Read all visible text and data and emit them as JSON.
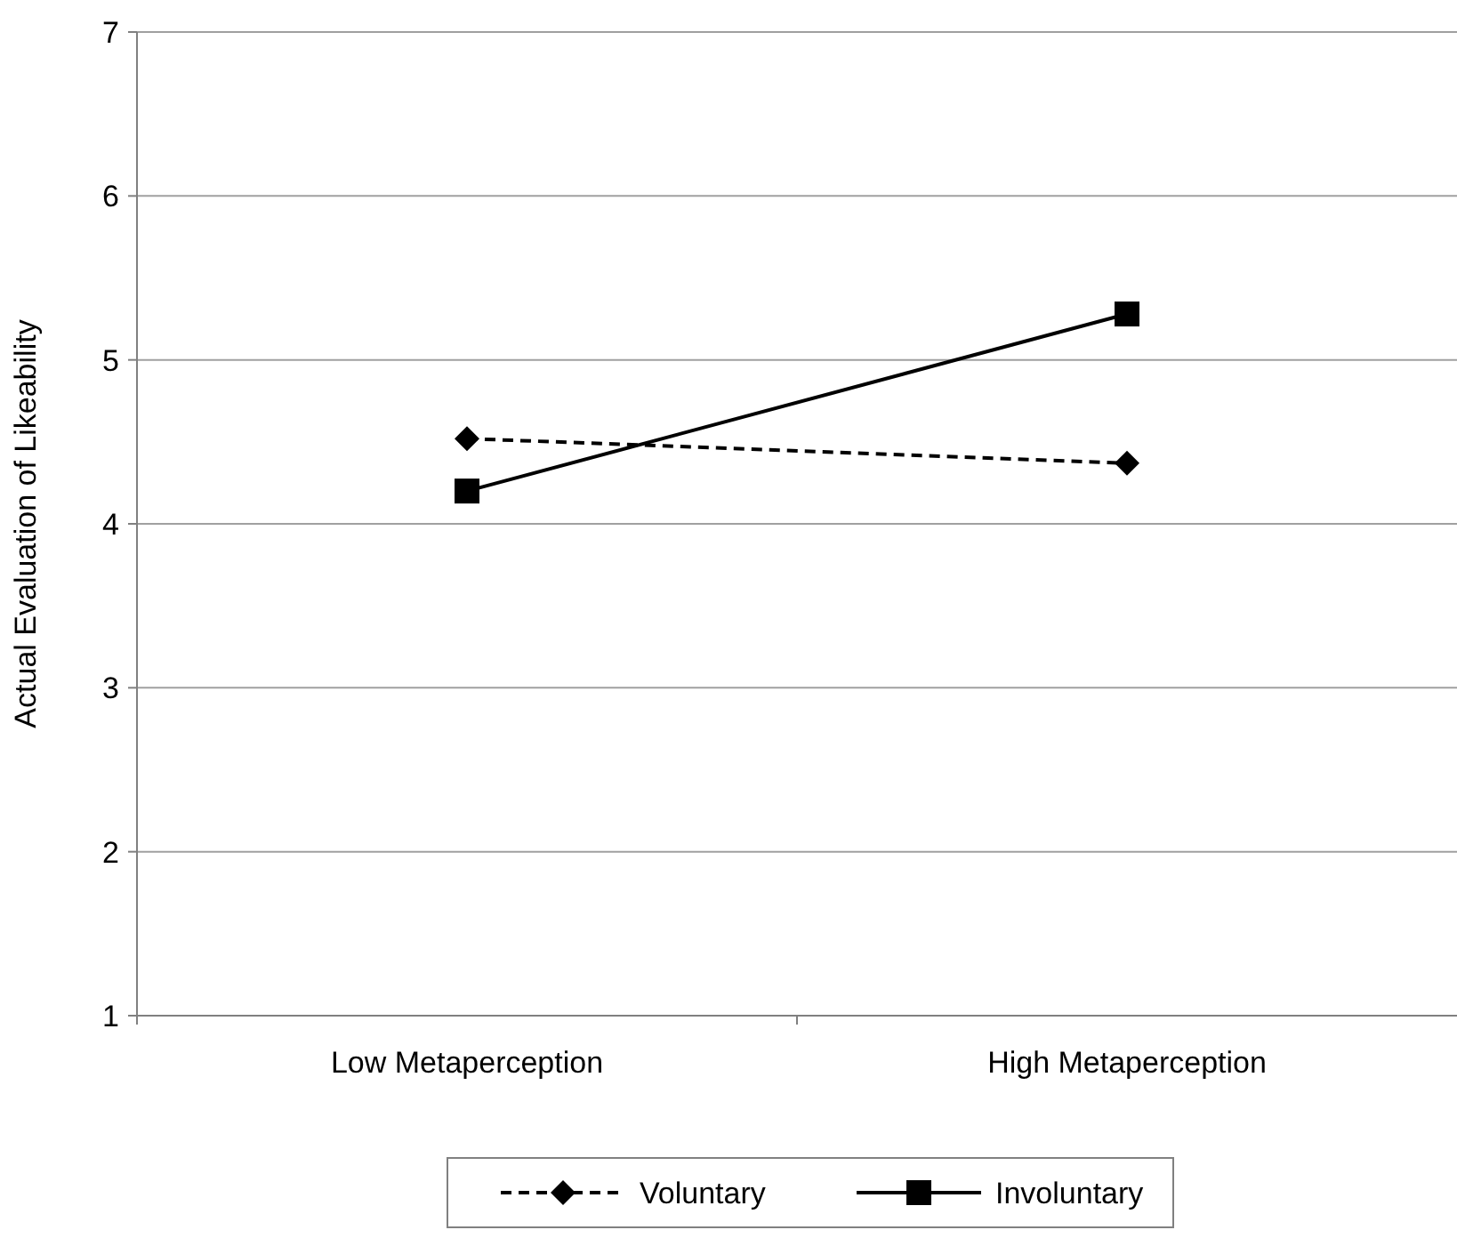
{
  "chart_data": {
    "type": "line",
    "ylabel": "Actual Evaluation of Likeability",
    "categories": [
      "Low Metaperception",
      "High Metaperception"
    ],
    "series": [
      {
        "name": "Voluntary",
        "color": "#000000",
        "values": [
          4.52,
          4.37
        ],
        "marker": "diamond",
        "line_style": "dashed"
      },
      {
        "name": "Involuntary",
        "color": "#000000",
        "values": [
          4.2,
          5.28
        ],
        "marker": "square",
        "line_style": "solid"
      }
    ],
    "ylim": [
      1,
      7
    ],
    "yticks": [
      1,
      2,
      3,
      4,
      5,
      6,
      7
    ],
    "grid": "y",
    "legend": "bottom"
  }
}
